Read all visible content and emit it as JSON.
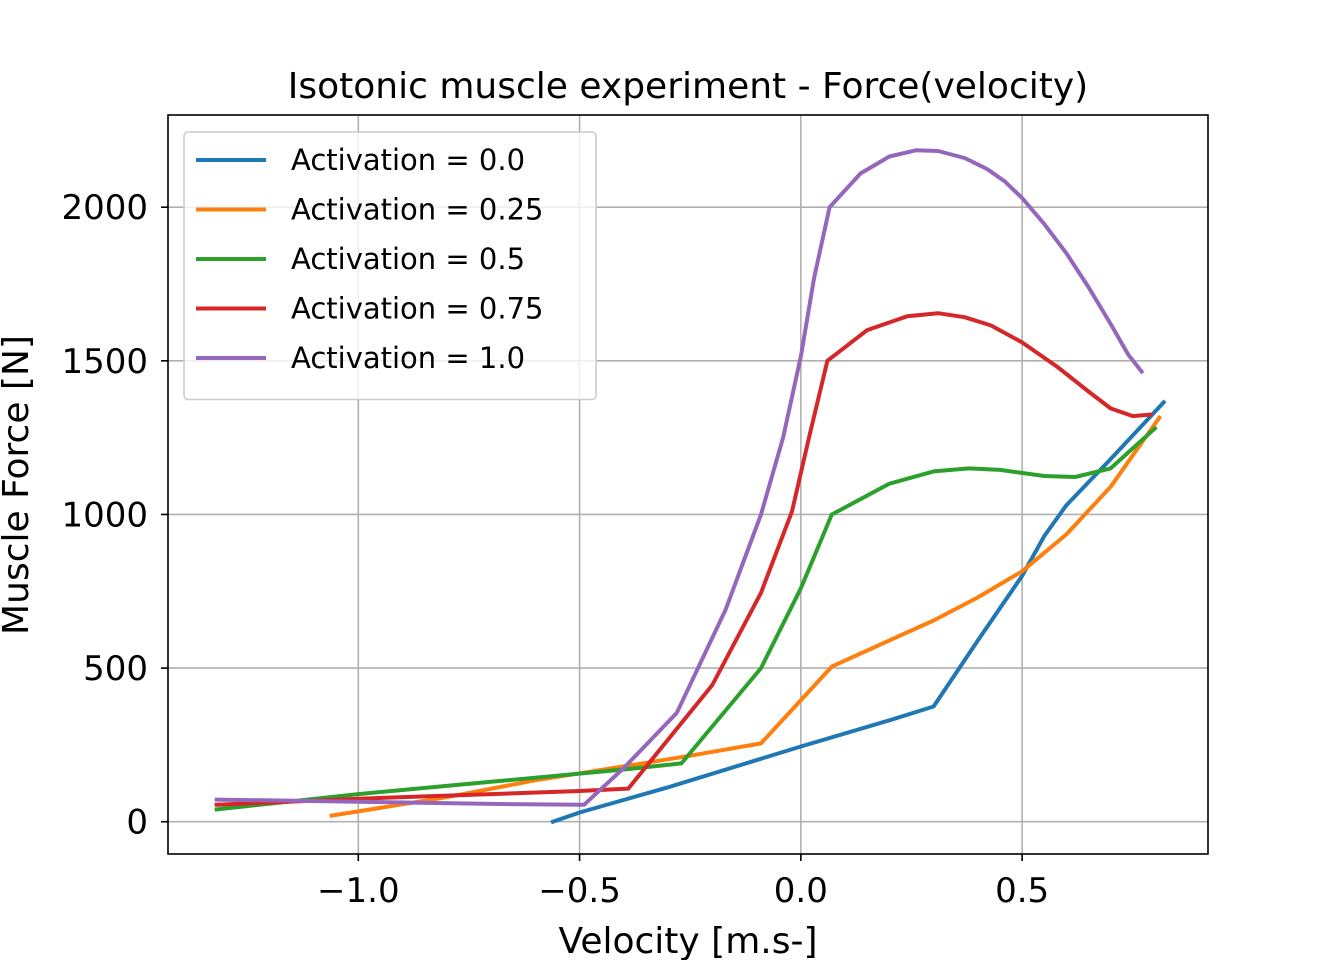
{
  "chart_data": {
    "type": "line",
    "title": "Isotonic muscle experiment - Force(velocity)",
    "xlabel": "Velocity [m.s-]",
    "ylabel": "Muscle Force [N]",
    "xlim": [
      -1.43,
      0.92
    ],
    "ylim": [
      -105,
      2300
    ],
    "xticks": [
      -1.0,
      -0.5,
      0.0,
      0.5
    ],
    "xtick_labels": [
      "−1.0",
      "−0.5",
      "0.0",
      "0.5"
    ],
    "yticks": [
      0,
      500,
      1000,
      1500,
      2000
    ],
    "ytick_labels": [
      "0",
      "500",
      "1000",
      "1500",
      "2000"
    ],
    "grid": true,
    "legend_position": "top-left",
    "series": [
      {
        "name": "Activation = 0.0",
        "color": "#1f77b4",
        "points": [
          [
            -0.56,
            0
          ],
          [
            -0.5,
            30
          ],
          [
            -0.3,
            112
          ],
          [
            0.0,
            245
          ],
          [
            0.2,
            330
          ],
          [
            0.3,
            375
          ],
          [
            0.4,
            590
          ],
          [
            0.5,
            800
          ],
          [
            0.55,
            930
          ],
          [
            0.6,
            1030
          ],
          [
            0.7,
            1180
          ],
          [
            0.82,
            1365
          ]
        ]
      },
      {
        "name": "Activation = 0.25",
        "color": "#ff7f0e",
        "points": [
          [
            -1.06,
            20
          ],
          [
            -0.8,
            80
          ],
          [
            -0.6,
            135
          ],
          [
            -0.4,
            180
          ],
          [
            -0.25,
            215
          ],
          [
            -0.09,
            255
          ],
          [
            0.07,
            505
          ],
          [
            0.2,
            590
          ],
          [
            0.3,
            655
          ],
          [
            0.4,
            730
          ],
          [
            0.5,
            815
          ],
          [
            0.6,
            935
          ],
          [
            0.7,
            1090
          ],
          [
            0.81,
            1315
          ]
        ]
      },
      {
        "name": "Activation = 0.5",
        "color": "#2ca02c",
        "points": [
          [
            -1.32,
            40
          ],
          [
            -1.0,
            90
          ],
          [
            -0.7,
            130
          ],
          [
            -0.4,
            170
          ],
          [
            -0.27,
            190
          ],
          [
            -0.09,
            500
          ],
          [
            0.0,
            760
          ],
          [
            0.07,
            1000
          ],
          [
            0.2,
            1100
          ],
          [
            0.3,
            1140
          ],
          [
            0.38,
            1150
          ],
          [
            0.45,
            1145
          ],
          [
            0.55,
            1125
          ],
          [
            0.62,
            1122
          ],
          [
            0.7,
            1150
          ],
          [
            0.8,
            1280
          ]
        ]
      },
      {
        "name": "Activation = 0.75",
        "color": "#d62728",
        "points": [
          [
            -1.32,
            55
          ],
          [
            -1.0,
            75
          ],
          [
            -0.7,
            90
          ],
          [
            -0.5,
            100
          ],
          [
            -0.39,
            108
          ],
          [
            -0.2,
            445
          ],
          [
            -0.09,
            745
          ],
          [
            -0.02,
            1010
          ],
          [
            0.02,
            1260
          ],
          [
            0.06,
            1500
          ],
          [
            0.15,
            1600
          ],
          [
            0.24,
            1645
          ],
          [
            0.31,
            1655
          ],
          [
            0.37,
            1642
          ],
          [
            0.43,
            1615
          ],
          [
            0.5,
            1560
          ],
          [
            0.58,
            1480
          ],
          [
            0.65,
            1400
          ],
          [
            0.7,
            1345
          ],
          [
            0.75,
            1320
          ],
          [
            0.79,
            1325
          ]
        ]
      },
      {
        "name": "Activation = 1.0",
        "color": "#9467bd",
        "points": [
          [
            -1.32,
            72
          ],
          [
            -1.0,
            65
          ],
          [
            -0.7,
            58
          ],
          [
            -0.49,
            55
          ],
          [
            -0.4,
            175
          ],
          [
            -0.28,
            355
          ],
          [
            -0.17,
            690
          ],
          [
            -0.09,
            1000
          ],
          [
            -0.04,
            1250
          ],
          [
            0.0,
            1515
          ],
          [
            0.03,
            1770
          ],
          [
            0.065,
            2000
          ],
          [
            0.135,
            2110
          ],
          [
            0.2,
            2165
          ],
          [
            0.26,
            2185
          ],
          [
            0.31,
            2183
          ],
          [
            0.37,
            2160
          ],
          [
            0.42,
            2125
          ],
          [
            0.46,
            2085
          ],
          [
            0.5,
            2030
          ],
          [
            0.55,
            1945
          ],
          [
            0.6,
            1850
          ],
          [
            0.65,
            1740
          ],
          [
            0.7,
            1620
          ],
          [
            0.74,
            1520
          ],
          [
            0.77,
            1465
          ]
        ]
      }
    ]
  }
}
